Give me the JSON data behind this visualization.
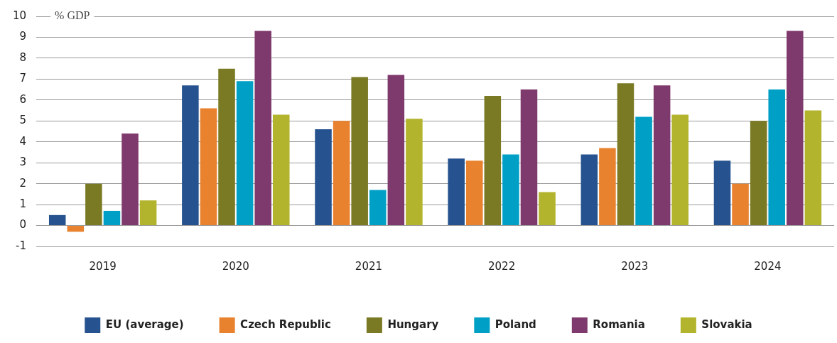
{
  "chart_data": {
    "type": "bar",
    "ylabel": "% GDP",
    "categories": [
      "2019",
      "2020",
      "2021",
      "2022",
      "2023",
      "2024"
    ],
    "series": [
      {
        "name": "EU (average)",
        "color": "#26538f",
        "values": [
          0.5,
          6.7,
          4.6,
          3.2,
          3.4,
          3.1
        ]
      },
      {
        "name": "Czech Republic",
        "color": "#e8822f",
        "values": [
          -0.3,
          5.6,
          5.0,
          3.1,
          3.7,
          2.0
        ]
      },
      {
        "name": "Hungary",
        "color": "#7a7a25",
        "values": [
          2.0,
          7.5,
          7.1,
          6.2,
          6.8,
          5.0
        ]
      },
      {
        "name": "Poland",
        "color": "#00a0c6",
        "values": [
          0.7,
          6.9,
          1.7,
          3.4,
          5.2,
          6.5
        ]
      },
      {
        "name": "Romania",
        "color": "#7f3a6d",
        "values": [
          4.4,
          9.3,
          7.2,
          6.5,
          6.7,
          9.3
        ]
      },
      {
        "name": "Slovakia",
        "color": "#b3b42d",
        "values": [
          1.2,
          5.3,
          5.1,
          1.6,
          5.3,
          5.5
        ]
      }
    ],
    "ylim": [
      -1,
      10
    ],
    "yticks": [
      -1,
      0,
      1,
      2,
      3,
      4,
      5,
      6,
      7,
      8,
      9,
      10
    ],
    "grid": "y",
    "legend": "bottom"
  }
}
